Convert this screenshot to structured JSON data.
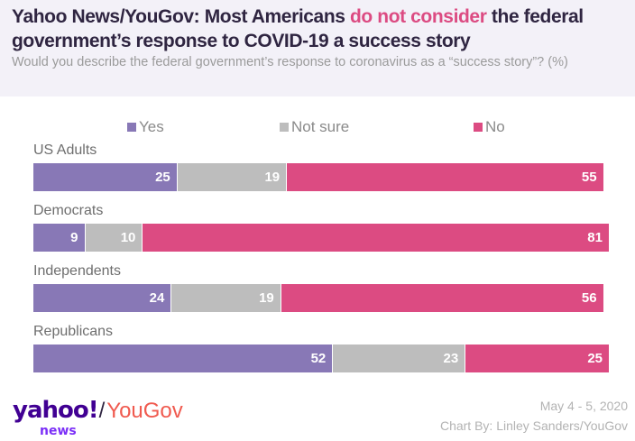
{
  "header": {
    "title_part1": "Yahoo News/YouGov: Most Americans ",
    "title_highlight": "do not consider",
    "title_part2": " the federal government’s response to COVID-19 a success story",
    "subtitle": "Would you describe the federal government’s response to coronavirus as a “success story”? (%)"
  },
  "footer": {
    "date": "May 4 - 5, 2020",
    "credit": "Chart By: Linley Sanders/YouGov",
    "logo_yahoo": "yahoo!",
    "logo_news": "news",
    "logo_slash": "/",
    "logo_yougov": "YouGov"
  },
  "colors": {
    "yes": "#8878b6",
    "not_sure": "#bdbdbd",
    "no": "#dc4b82",
    "highlight": "#dc4b82",
    "header_bg": "#f3f1f8"
  },
  "chart_data": {
    "type": "bar",
    "orientation": "horizontal-stacked",
    "title": "Yahoo News/YouGov: Most Americans do not consider the federal government’s response to COVID-19 a success story",
    "subtitle": "Would you describe the federal government’s response to coronavirus as a “success story”? (%)",
    "legend_position": "top",
    "categories": [
      "US Adults",
      "Democrats",
      "Independents",
      "Republicans"
    ],
    "series": [
      {
        "name": "Yes",
        "values": [
          25,
          9,
          24,
          52
        ]
      },
      {
        "name": "Not sure",
        "values": [
          19,
          10,
          19,
          23
        ]
      },
      {
        "name": "No",
        "values": [
          55,
          81,
          56,
          25
        ]
      }
    ],
    "xlim": [
      0,
      100
    ],
    "grid": false
  }
}
